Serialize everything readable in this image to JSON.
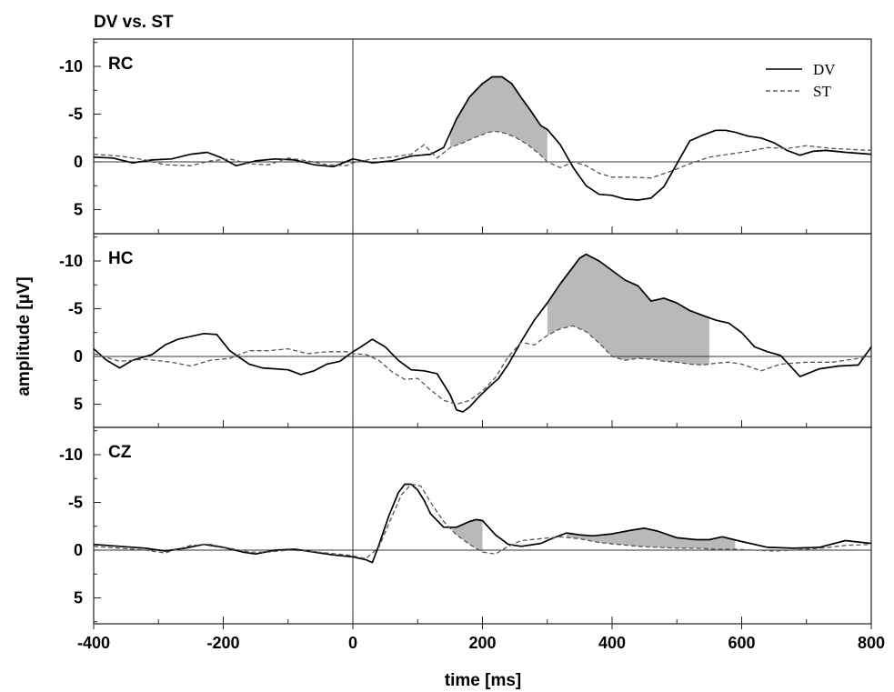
{
  "chart_data": {
    "type": "line",
    "title": "DV vs. ST",
    "xlabel": "time [ms]",
    "ylabel": "amplitude [µV]",
    "xlim": [
      -400,
      800
    ],
    "ylim": [
      -12,
      8
    ],
    "y_inverted": true,
    "x_ticks": [
      -400,
      -200,
      0,
      200,
      400,
      600,
      800
    ],
    "y_ticks": [
      -10,
      -5,
      0,
      5
    ],
    "y_tick_labels": [
      "-10",
      "-5",
      "0",
      "5"
    ],
    "x_tick_labels": [
      "-400",
      "-200",
      "0",
      "200",
      "400",
      "600",
      "800"
    ],
    "legend": {
      "position": "top-right",
      "entries": [
        {
          "name": "DV",
          "style": "solid"
        },
        {
          "name": "ST",
          "style": "dashed"
        }
      ]
    },
    "panels": [
      {
        "name": "RC",
        "shade": [
          [
            150,
            300
          ]
        ],
        "series": [
          {
            "name": "DV",
            "style": "solid",
            "x": [
              -400,
              -370,
              -340,
              -310,
              -280,
              -250,
              -225,
              -205,
              -180,
              -150,
              -120,
              -90,
              -60,
              -30,
              0,
              30,
              60,
              90,
              120,
              140,
              160,
              180,
              200,
              215,
              230,
              245,
              260,
              275,
              290,
              300,
              320,
              340,
              360,
              380,
              400,
              420,
              440,
              460,
              480,
              500,
              520,
              540,
              560,
              575,
              590,
              610,
              630,
              650,
              670,
              690,
              710,
              730,
              760,
              800
            ],
            "y": [
              -0.5,
              -0.4,
              0.1,
              -0.2,
              -0.3,
              -0.8,
              -1.0,
              -0.5,
              0.4,
              -0.1,
              -0.3,
              -0.2,
              0.3,
              0.5,
              -0.3,
              0.1,
              -0.1,
              -0.6,
              -0.8,
              -1.5,
              -4.5,
              -6.8,
              -8.2,
              -8.9,
              -8.9,
              -8.2,
              -6.7,
              -5.3,
              -3.8,
              -3.4,
              -1.8,
              0.6,
              2.5,
              3.4,
              3.5,
              3.9,
              4.0,
              3.8,
              2.6,
              0.2,
              -2.2,
              -2.8,
              -3.3,
              -3.3,
              -3.1,
              -2.7,
              -2.5,
              -2.0,
              -1.2,
              -0.7,
              -1.1,
              -1.2,
              -1.0,
              -0.8
            ]
          },
          {
            "name": "ST",
            "style": "dashed",
            "x": [
              -400,
              -360,
              -320,
              -290,
              -250,
              -220,
              -190,
              -160,
              -130,
              -100,
              -70,
              -40,
              -10,
              0,
              30,
              60,
              90,
              110,
              130,
              150,
              170,
              190,
              210,
              220,
              235,
              250,
              270,
              290,
              300,
              320,
              340,
              360,
              380,
              400,
              430,
              460,
              490,
              520,
              550,
              580,
              610,
              640,
              670,
              700,
              740,
              800
            ],
            "y": [
              -0.8,
              -0.6,
              -0.2,
              0.3,
              0.4,
              -0.1,
              -0.3,
              0.2,
              0.3,
              -0.4,
              -0.1,
              0.3,
              0.4,
              0.1,
              -0.3,
              -0.5,
              -0.8,
              -1.8,
              -0.4,
              -1.5,
              -2.0,
              -2.6,
              -3.1,
              -3.2,
              -3.0,
              -2.6,
              -1.8,
              -0.7,
              0.0,
              0.6,
              0.0,
              0.4,
              1.2,
              1.6,
              1.6,
              1.7,
              1.0,
              0.2,
              -0.5,
              -0.8,
              -1.1,
              -1.5,
              -1.4,
              -1.7,
              -1.4,
              -1.2
            ]
          }
        ]
      },
      {
        "name": "HC",
        "shade": [
          [
            300,
            550
          ]
        ],
        "series": [
          {
            "name": "DV",
            "style": "solid",
            "x": [
              -400,
              -380,
              -360,
              -340,
              -310,
              -290,
              -270,
              -250,
              -230,
              -210,
              -190,
              -160,
              -140,
              -120,
              -100,
              -80,
              -60,
              -40,
              -20,
              0,
              10,
              30,
              50,
              70,
              90,
              110,
              130,
              150,
              160,
              170,
              180,
              195,
              210,
              225,
              240,
              260,
              280,
              300,
              320,
              340,
              350,
              360,
              380,
              400,
              420,
              440,
              460,
              480,
              500,
              520,
              540,
              560,
              580,
              600,
              620,
              640,
              660,
              690,
              720,
              750,
              780,
              800
            ],
            "y": [
              -0.8,
              0.4,
              1.2,
              0.4,
              -0.2,
              -1.2,
              -1.8,
              -2.1,
              -2.4,
              -2.3,
              -0.6,
              0.8,
              1.2,
              1.3,
              1.4,
              1.9,
              1.5,
              0.8,
              0.5,
              -0.5,
              -0.9,
              -1.8,
              -1.0,
              0.4,
              1.4,
              1.5,
              1.8,
              4.0,
              5.6,
              5.8,
              5.3,
              4.2,
              3.2,
              2.3,
              0.8,
              -1.6,
              -3.8,
              -5.6,
              -7.6,
              -9.4,
              -10.3,
              -10.7,
              -10.0,
              -9.0,
              -8.0,
              -7.4,
              -5.8,
              -6.1,
              -5.6,
              -4.8,
              -4.3,
              -3.8,
              -3.5,
              -2.5,
              -1.0,
              -0.5,
              -0.1,
              2.1,
              1.3,
              1.0,
              0.9,
              -1.0
            ]
          },
          {
            "name": "ST",
            "style": "dashed",
            "x": [
              -400,
              -360,
              -320,
              -280,
              -250,
              -220,
              -190,
              -160,
              -130,
              -100,
              -70,
              -40,
              -10,
              0,
              20,
              40,
              60,
              80,
              100,
              120,
              140,
              160,
              180,
              200,
              220,
              240,
              260,
              280,
              300,
              320,
              340,
              360,
              380,
              400,
              420,
              440,
              460,
              480,
              500,
              520,
              540,
              560,
              580,
              600,
              630,
              660,
              700,
              740,
              780,
              800
            ],
            "y": [
              -0.3,
              0.5,
              0.3,
              0.6,
              1.0,
              0.4,
              0.2,
              -0.6,
              -0.6,
              -0.8,
              -0.3,
              -0.5,
              -0.5,
              -0.3,
              -0.2,
              0.4,
              1.6,
              2.4,
              2.3,
              3.5,
              4.6,
              5.0,
              4.6,
              3.6,
              2.2,
              0.0,
              -1.5,
              -1.2,
              -2.2,
              -2.9,
              -3.2,
              -2.6,
              -1.4,
              0.0,
              0.4,
              0.2,
              0.3,
              0.5,
              0.6,
              0.8,
              0.9,
              0.7,
              0.6,
              0.8,
              1.5,
              0.8,
              0.6,
              0.6,
              0.2,
              0.0
            ]
          }
        ]
      },
      {
        "name": "CZ",
        "shade": [
          [
            150,
            200
          ],
          [
            330,
            590
          ]
        ],
        "series": [
          {
            "name": "DV",
            "style": "solid",
            "x": [
              -400,
              -360,
              -320,
              -290,
              -260,
              -230,
              -200,
              -170,
              -150,
              -120,
              -90,
              -60,
              -30,
              0,
              20,
              30,
              40,
              55,
              70,
              80,
              90,
              100,
              110,
              120,
              140,
              160,
              180,
              190,
              200,
              220,
              240,
              260,
              290,
              310,
              330,
              350,
              370,
              400,
              430,
              450,
              470,
              500,
              530,
              550,
              570,
              600,
              640,
              680,
              720,
              760,
              800
            ],
            "y": [
              -0.6,
              -0.4,
              -0.2,
              0.1,
              -0.2,
              -0.6,
              -0.3,
              0.2,
              0.4,
              0.0,
              -0.1,
              0.2,
              0.5,
              0.7,
              1.0,
              1.3,
              -0.5,
              -3.5,
              -6.0,
              -6.9,
              -6.9,
              -6.3,
              -5.2,
              -3.8,
              -2.4,
              -2.4,
              -3.0,
              -3.2,
              -3.1,
              -1.6,
              -0.6,
              -0.4,
              -0.7,
              -1.3,
              -1.8,
              -1.6,
              -1.5,
              -1.7,
              -2.1,
              -2.3,
              -2.0,
              -1.3,
              -1.1,
              -1.1,
              -1.4,
              -0.9,
              -0.3,
              -0.2,
              -0.3,
              -1.0,
              -0.7
            ]
          },
          {
            "name": "ST",
            "style": "dashed",
            "x": [
              -400,
              -360,
              -320,
              -290,
              -250,
              -220,
              -190,
              -160,
              -130,
              -100,
              -70,
              -40,
              -10,
              0,
              20,
              40,
              60,
              75,
              90,
              105,
              120,
              140,
              160,
              180,
              200,
              220,
              240,
              260,
              290,
              320,
              350,
              380,
              410,
              440,
              470,
              500,
              530,
              560,
              590,
              620,
              650,
              680,
              720,
              760,
              800
            ],
            "y": [
              -0.4,
              -0.2,
              0.0,
              0.3,
              -0.5,
              -0.6,
              -0.2,
              0.2,
              0.2,
              0.0,
              0.1,
              0.3,
              0.5,
              0.6,
              0.9,
              -0.3,
              -3.5,
              -5.8,
              -6.9,
              -6.7,
              -5.0,
              -3.0,
              -1.6,
              -0.6,
              0.2,
              0.4,
              -0.4,
              -1.0,
              -1.2,
              -1.4,
              -1.2,
              -0.8,
              -0.6,
              -0.4,
              -0.3,
              -0.2,
              -0.2,
              -0.1,
              -0.1,
              0.0,
              0.1,
              0.0,
              -0.2,
              -0.5,
              -0.6
            ]
          }
        ]
      }
    ]
  }
}
